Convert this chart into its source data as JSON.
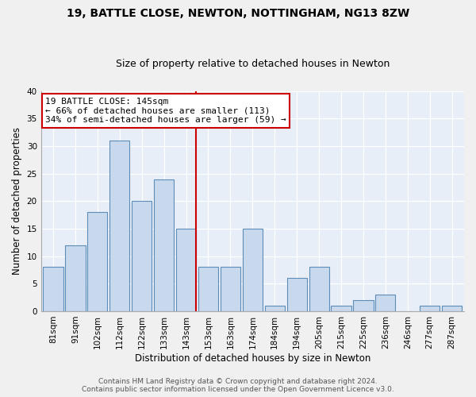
{
  "title": "19, BATTLE CLOSE, NEWTON, NOTTINGHAM, NG13 8ZW",
  "subtitle": "Size of property relative to detached houses in Newton",
  "xlabel": "Distribution of detached houses by size in Newton",
  "ylabel": "Number of detached properties",
  "bar_labels": [
    "81sqm",
    "91sqm",
    "102sqm",
    "112sqm",
    "122sqm",
    "133sqm",
    "143sqm",
    "153sqm",
    "163sqm",
    "174sqm",
    "184sqm",
    "194sqm",
    "205sqm",
    "215sqm",
    "225sqm",
    "236sqm",
    "246sqm",
    "277sqm",
    "287sqm"
  ],
  "bar_values": [
    8,
    12,
    18,
    31,
    20,
    24,
    15,
    8,
    8,
    15,
    1,
    6,
    8,
    1,
    2,
    3,
    0,
    1,
    1
  ],
  "bar_color": "#c9d9ed",
  "bar_edge_color": "#5b8db8",
  "red_line_index": 6,
  "annotation_title": "19 BATTLE CLOSE: 145sqm",
  "annotation_line1": "← 66% of detached houses are smaller (113)",
  "annotation_line2": "34% of semi-detached houses are larger (59) →",
  "annotation_box_color": "#ffffff",
  "annotation_box_edge_color": "#cc0000",
  "ylim": [
    0,
    40
  ],
  "yticks": [
    0,
    5,
    10,
    15,
    20,
    25,
    30,
    35,
    40
  ],
  "footer_line1": "Contains HM Land Registry data © Crown copyright and database right 2024.",
  "footer_line2": "Contains public sector information licensed under the Open Government Licence v3.0.",
  "background_color": "#e8eef8",
  "grid_color": "#ffffff",
  "title_fontsize": 10,
  "subtitle_fontsize": 9,
  "axis_label_fontsize": 8.5,
  "tick_fontsize": 7.5,
  "annotation_fontsize": 8,
  "footer_fontsize": 6.5
}
